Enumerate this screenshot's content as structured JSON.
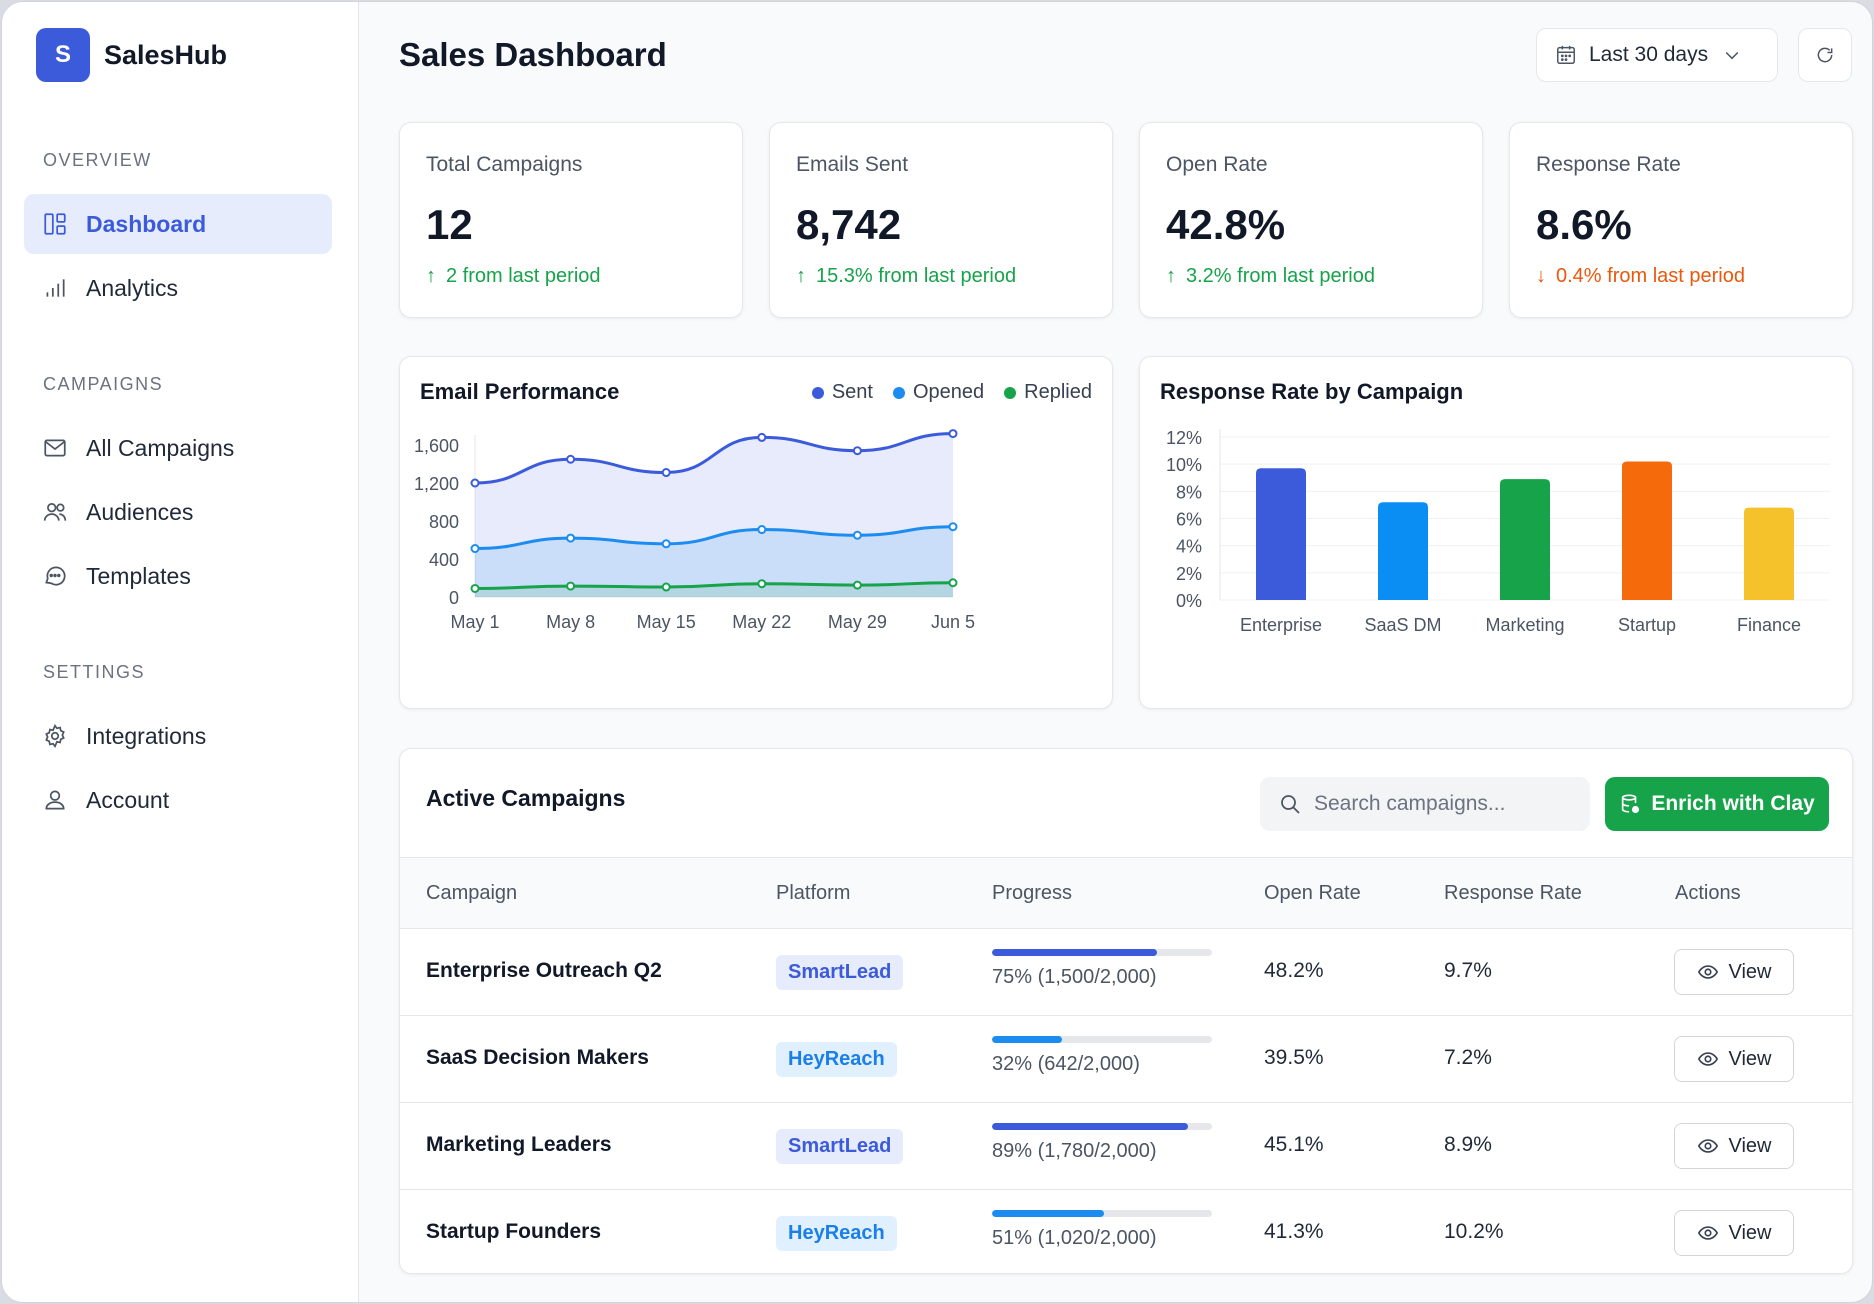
{
  "brand": {
    "logo_letter": "S",
    "name": "SalesHub"
  },
  "sidebar": {
    "sections": [
      {
        "title": "OVERVIEW",
        "items": [
          {
            "label": "Dashboard",
            "icon": "layout-icon",
            "active": true
          },
          {
            "label": "Analytics",
            "icon": "bar-chart-icon"
          }
        ]
      },
      {
        "title": "CAMPAIGNS",
        "items": [
          {
            "label": "All Campaigns",
            "icon": "mail-icon"
          },
          {
            "label": "Audiences",
            "icon": "users-icon"
          },
          {
            "label": "Templates",
            "icon": "message-icon"
          }
        ]
      },
      {
        "title": "SETTINGS",
        "items": [
          {
            "label": "Integrations",
            "icon": "gear-icon"
          },
          {
            "label": "Account",
            "icon": "user-icon"
          }
        ]
      }
    ]
  },
  "header": {
    "title": "Sales Dashboard",
    "date_range": "Last 30 days"
  },
  "stats": [
    {
      "label": "Total Campaigns",
      "value": "12",
      "change": "2 from last period",
      "direction": "up"
    },
    {
      "label": "Emails Sent",
      "value": "8,742",
      "change": "15.3% from last period",
      "direction": "up"
    },
    {
      "label": "Open Rate",
      "value": "42.8%",
      "change": "3.2% from last period",
      "direction": "up"
    },
    {
      "label": "Response Rate",
      "value": "8.6%",
      "change": "0.4% from last period",
      "direction": "down"
    }
  ],
  "chart_data": [
    {
      "type": "area",
      "title": "Email Performance",
      "x": [
        "May 1",
        "May 8",
        "May 15",
        "May 22",
        "May 29",
        "Jun 5"
      ],
      "ylim": [
        0,
        1600
      ],
      "yticks": [
        "0",
        "400",
        "800",
        "1,200",
        "1,600"
      ],
      "ytick_values": [
        0,
        400,
        800,
        1200,
        1600
      ],
      "series": [
        {
          "name": "Sent",
          "color": "#3b5bdb",
          "values": [
            1200,
            1450,
            1310,
            1680,
            1540,
            1720
          ]
        },
        {
          "name": "Opened",
          "color": "#1c8cf0",
          "values": [
            510,
            620,
            560,
            710,
            650,
            740
          ]
        },
        {
          "name": "Replied",
          "color": "#16a34a",
          "values": [
            90,
            115,
            105,
            140,
            125,
            150
          ]
        }
      ]
    },
    {
      "type": "bar",
      "title": "Response Rate by Campaign",
      "categories": [
        "Enterprise",
        "SaaS DM",
        "Marketing",
        "Startup",
        "Finance"
      ],
      "values": [
        9.7,
        7.2,
        8.9,
        10.2,
        6.8
      ],
      "colors": [
        "#3b5bdb",
        "#0b8ef3",
        "#16a34a",
        "#f56a0b",
        "#f5c22b"
      ],
      "ylim": [
        0,
        12
      ],
      "yticks": [
        "0%",
        "2%",
        "4%",
        "6%",
        "8%",
        "10%",
        "12%"
      ],
      "ytick_values": [
        0,
        2,
        4,
        6,
        8,
        10,
        12
      ],
      "ylabel": "",
      "xlabel": ""
    }
  ],
  "campaigns_table": {
    "title": "Active Campaigns",
    "search_placeholder": "Search campaigns...",
    "enrich_label": "Enrich with Clay",
    "columns": [
      "Campaign",
      "Platform",
      "Progress",
      "Open Rate",
      "Response Rate",
      "Actions"
    ],
    "rows": [
      {
        "name": "Enterprise Outreach Q2",
        "platform": "SmartLead",
        "progress": 0.75,
        "progress_text": "75% (1,500/2,000)",
        "open_rate": "48.2%",
        "response_rate": "9.7%",
        "action": "View",
        "bar_color": "#3b5bdb"
      },
      {
        "name": "SaaS Decision Makers",
        "platform": "HeyReach",
        "progress": 0.32,
        "progress_text": "32% (642/2,000)",
        "open_rate": "39.5%",
        "response_rate": "7.2%",
        "action": "View",
        "bar_color": "#1c8cf0"
      },
      {
        "name": "Marketing Leaders",
        "platform": "SmartLead",
        "progress": 0.89,
        "progress_text": "89% (1,780/2,000)",
        "open_rate": "45.1%",
        "response_rate": "8.9%",
        "action": "View",
        "bar_color": "#3b5bdb"
      },
      {
        "name": "Startup Founders",
        "platform": "HeyReach",
        "progress": 0.51,
        "progress_text": "51% (1,020/2,000)",
        "open_rate": "41.3%",
        "response_rate": "10.2%",
        "action": "View",
        "bar_color": "#1c8cf0"
      }
    ]
  }
}
